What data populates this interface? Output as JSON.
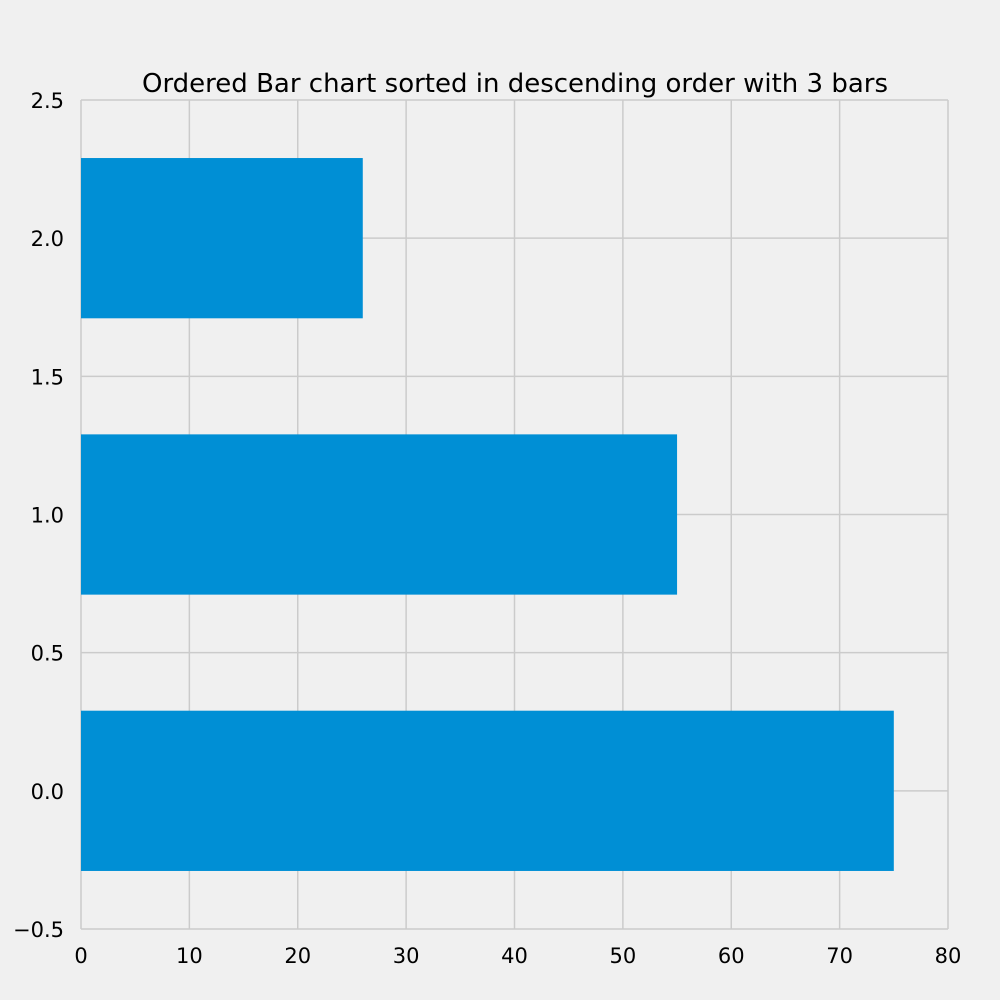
{
  "chart_data": {
    "type": "bar",
    "orientation": "horizontal",
    "title": "Ordered Bar chart sorted in descending order with 3 bars",
    "xlabel": "",
    "ylabel": "",
    "bar_color": "#008fd5",
    "grid_color": "#cbcbcb",
    "background_color": "#f0f0f0",
    "grid": true,
    "xlim": [
      0,
      80
    ],
    "ylim": [
      -0.5,
      2.5
    ],
    "bar_width": 0.58,
    "y_positions": [
      0,
      1,
      2
    ],
    "values": [
      75,
      55,
      26
    ],
    "x_ticks": [
      0,
      10,
      20,
      30,
      40,
      50,
      60,
      70,
      80
    ],
    "x_tick_labels": [
      "0",
      "10",
      "20",
      "30",
      "40",
      "50",
      "60",
      "70",
      "80"
    ],
    "y_ticks": [
      -0.5,
      0,
      0.5,
      1,
      1.5,
      2,
      2.5
    ],
    "y_tick_labels": [
      "−0.5",
      "0.0",
      "0.5",
      "1.0",
      "1.5",
      "2.0",
      "2.5"
    ]
  }
}
